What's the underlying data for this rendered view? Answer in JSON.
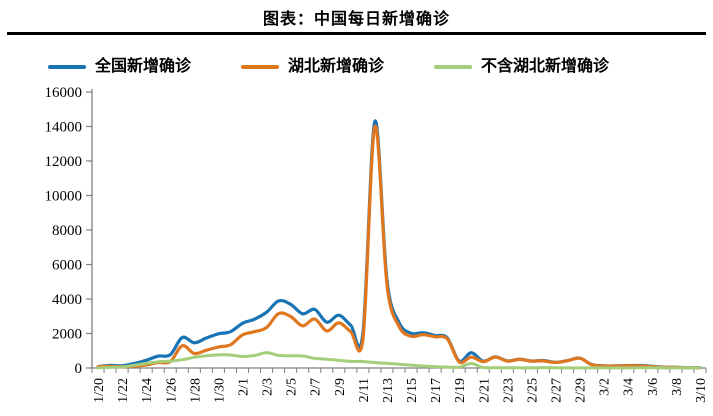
{
  "title": "图表：中国每日新增确诊",
  "chart_data": {
    "type": "line",
    "title": "图表：中国每日新增确诊",
    "grid": false,
    "legend_position": "top",
    "line_style": "smooth",
    "xlabel": "",
    "ylabel": "",
    "ylim": [
      0,
      16000
    ],
    "ytick_interval": 2000,
    "yticks": [
      0,
      2000,
      4000,
      6000,
      8000,
      10000,
      12000,
      14000,
      16000
    ],
    "xtick_label_every": 2,
    "xtick_labels_shown": [
      "1/20",
      "1/22",
      "1/24",
      "1/26",
      "1/28",
      "1/30",
      "2/1",
      "2/3",
      "2/5",
      "2/7",
      "2/9",
      "2/11",
      "2/13",
      "2/15",
      "2/17",
      "2/19",
      "2/21",
      "2/23",
      "2/25",
      "2/27",
      "2/29",
      "3/2",
      "3/4",
      "3/6",
      "3/8",
      "3/10"
    ],
    "categories": [
      "1/20",
      "1/21",
      "1/22",
      "1/23",
      "1/24",
      "1/25",
      "1/26",
      "1/27",
      "1/28",
      "1/29",
      "1/30",
      "1/31",
      "2/1",
      "2/2",
      "2/3",
      "2/4",
      "2/5",
      "2/6",
      "2/7",
      "2/8",
      "2/9",
      "2/10",
      "2/11",
      "2/12",
      "2/13",
      "2/14",
      "2/15",
      "2/16",
      "2/17",
      "2/18",
      "2/19",
      "2/20",
      "2/21",
      "2/22",
      "2/23",
      "2/24",
      "2/25",
      "2/26",
      "2/27",
      "2/28",
      "2/29",
      "3/1",
      "3/2",
      "3/3",
      "3/4",
      "3/5",
      "3/6",
      "3/7",
      "3/8",
      "3/9",
      "3/10"
    ],
    "series": [
      {
        "name": "全国新增确诊",
        "color": "#1874B4",
        "values": [
          77,
          149,
          131,
          259,
          444,
          688,
          769,
          1771,
          1459,
          1737,
          1982,
          2102,
          2590,
          2829,
          3235,
          3887,
          3694,
          3143,
          3399,
          2656,
          3062,
          2478,
          2015,
          14300,
          5090,
          2641,
          2009,
          2048,
          1886,
          1749,
          394,
          889,
          397,
          648,
          409,
          508,
          406,
          433,
          327,
          427,
          573,
          202,
          125,
          119,
          139,
          143,
          99,
          44,
          40,
          19,
          24
        ]
      },
      {
        "name": "湖北新增确诊",
        "color": "#E0771F",
        "values": [
          72,
          105,
          69,
          105,
          180,
          323,
          371,
          1291,
          840,
          1032,
          1220,
          1347,
          1921,
          2103,
          2345,
          3156,
          2987,
          2447,
          2841,
          2147,
          2618,
          2097,
          1638,
          14000,
          4823,
          2420,
          1843,
          1933,
          1807,
          1693,
          349,
          631,
          366,
          630,
          398,
          499,
          401,
          409,
          318,
          423,
          570,
          196,
          114,
          115,
          134,
          126,
          74,
          41,
          36,
          13,
          13
        ]
      },
      {
        "name": "不含湖北新增确诊",
        "color": "#A5CE7C",
        "values": [
          5,
          44,
          62,
          154,
          264,
          365,
          398,
          480,
          619,
          705,
          762,
          755,
          669,
          726,
          890,
          731,
          707,
          696,
          558,
          509,
          444,
          381,
          377,
          312,
          267,
          221,
          166,
          115,
          79,
          56,
          45,
          258,
          31,
          18,
          11,
          9,
          5,
          24,
          9,
          4,
          3,
          6,
          11,
          4,
          5,
          17,
          25,
          3,
          4,
          6,
          11
        ]
      }
    ],
    "axis_color": "#7f7f7f"
  }
}
